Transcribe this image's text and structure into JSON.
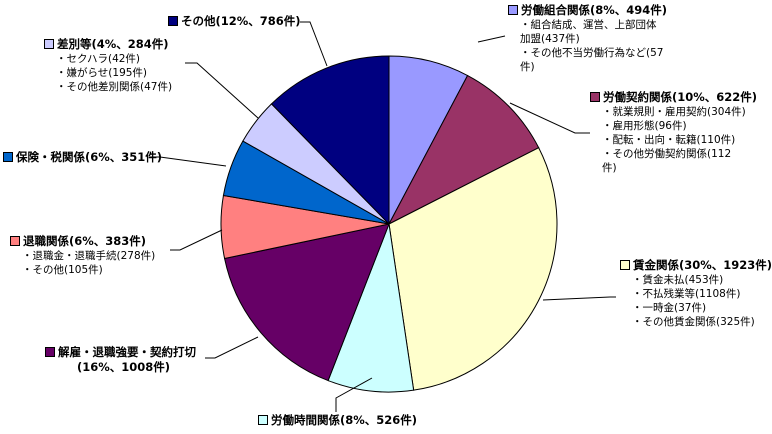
{
  "chart_data": {
    "type": "pie",
    "start": "top",
    "direction": "clockwise",
    "slices": [
      {
        "key": "union",
        "name": "労働組合関係",
        "percent": 8,
        "value": 494,
        "color": "#9999ff",
        "heading": "労働組合関係(8%、494件)",
        "details": [
          "・組合結成、運営、上部団体",
          "加盟(437件)",
          "・その他不当労働行為など(57",
          "件)"
        ]
      },
      {
        "key": "contract",
        "name": "労働契約関係",
        "percent": 10,
        "value": 622,
        "color": "#993366",
        "heading": "労働契約関係(10%、622件)",
        "details": [
          "・就業規則・雇用契約(304件)",
          "・雇用形態(96件)",
          "・配転・出向・転籍(110件)",
          "・その他労働契約関係(112",
          "件)"
        ]
      },
      {
        "key": "wage",
        "name": "賃金関係",
        "percent": 30,
        "value": 1923,
        "color": "#ffffcc",
        "heading": "賃金関係(30%、1923件)",
        "details": [
          "・賃金未払(453件)",
          "・不払残業等(1108件)",
          "・一時金(37件)",
          "・その他賃金関係(325件)"
        ]
      },
      {
        "key": "hours",
        "name": "労働時間関係",
        "percent": 8,
        "value": 526,
        "color": "#ccffff",
        "heading": "労働時間関係(8%、526件)",
        "details": []
      },
      {
        "key": "dismissal",
        "name": "解雇・退職強要・契約打切",
        "percent": 16,
        "value": 1008,
        "color": "#660066",
        "heading": "解雇・退職強要・契約打切",
        "heading2": "(16%、1008件)",
        "details": []
      },
      {
        "key": "retire",
        "name": "退職関係",
        "percent": 6,
        "value": 383,
        "color": "#ff8080",
        "heading": "退職関係(6%、383件)",
        "details": [
          "・退職金・退職手続(278件)",
          "・その他(105件)"
        ]
      },
      {
        "key": "insurance",
        "name": "保険・税関係",
        "percent": 6,
        "value": 351,
        "color": "#0066cc",
        "heading": "保険・税関係(6%、351件)",
        "details": []
      },
      {
        "key": "discrim",
        "name": "差別等",
        "percent": 4,
        "value": 284,
        "color": "#ccccff",
        "heading": "差別等(4%、284件)",
        "details": [
          "・セクハラ(42件)",
          "・嫌がらせ(195件)",
          "・その他差別関係(47件)"
        ]
      },
      {
        "key": "other",
        "name": "その他",
        "percent": 12,
        "value": 786,
        "color": "#000080",
        "heading": "その他(12%、786件)",
        "details": []
      }
    ]
  }
}
